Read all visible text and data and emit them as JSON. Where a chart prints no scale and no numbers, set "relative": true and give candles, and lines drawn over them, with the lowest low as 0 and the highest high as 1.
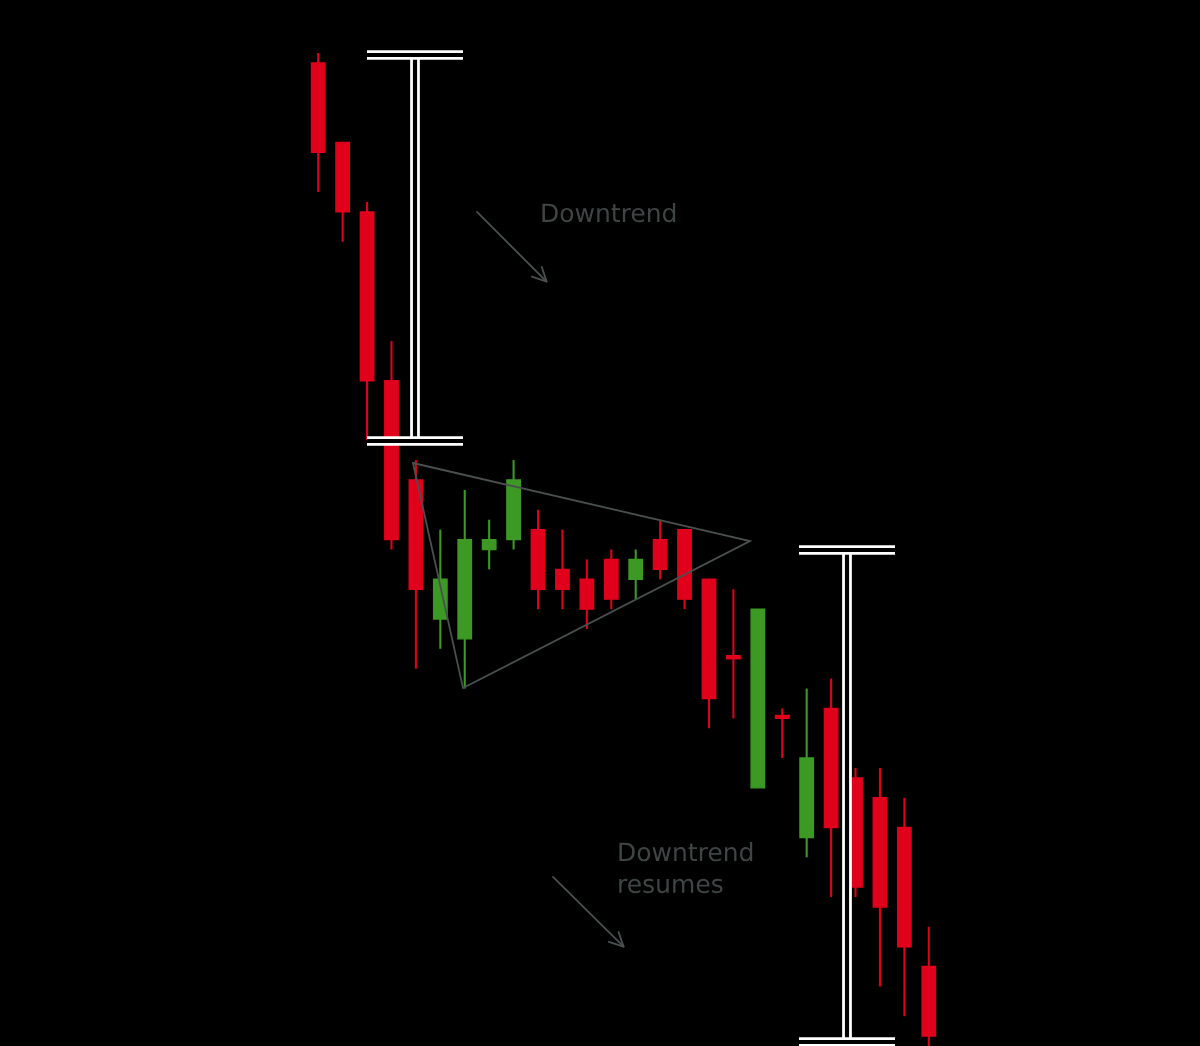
{
  "chart_data": {
    "type": "candlestick",
    "relative": true,
    "categories": [
      null,
      null,
      null,
      null,
      null,
      null,
      null,
      null,
      null,
      null,
      null,
      null,
      null,
      null,
      null,
      null,
      null,
      null,
      null,
      null,
      null,
      null,
      null,
      null,
      null,
      null
    ],
    "ohlc": [
      [
        0.99,
        1.0,
        0.86,
        0.9
      ],
      [
        0.91,
        0.91,
        0.81,
        0.84
      ],
      [
        0.84,
        0.85,
        0.61,
        0.67
      ],
      [
        0.67,
        0.71,
        0.5,
        0.51
      ],
      [
        0.57,
        0.59,
        0.38,
        0.46
      ],
      [
        0.43,
        0.52,
        0.4,
        0.47
      ],
      [
        0.41,
        0.56,
        0.36,
        0.51
      ],
      [
        0.5,
        0.53,
        0.48,
        0.51
      ],
      [
        0.51,
        0.59,
        0.5,
        0.57
      ],
      [
        0.52,
        0.54,
        0.44,
        0.46
      ],
      [
        0.48,
        0.52,
        0.44,
        0.46
      ],
      [
        0.47,
        0.49,
        0.42,
        0.44
      ],
      [
        0.49,
        0.5,
        0.44,
        0.45
      ],
      [
        0.47,
        0.5,
        0.45,
        0.49
      ],
      [
        0.51,
        0.53,
        0.47,
        0.48
      ],
      [
        0.52,
        0.52,
        0.44,
        0.45
      ],
      [
        0.47,
        0.47,
        0.32,
        0.35
      ],
      [
        0.39,
        0.46,
        0.33,
        0.39
      ],
      [
        0.26,
        0.44,
        0.26,
        0.44
      ],
      [
        0.33,
        0.34,
        0.29,
        0.33
      ],
      [
        0.21,
        0.36,
        0.19,
        0.29
      ],
      [
        0.34,
        0.37,
        0.15,
        0.22
      ],
      [
        0.27,
        0.28,
        0.15,
        0.16
      ],
      [
        0.25,
        0.28,
        0.06,
        0.14
      ],
      [
        0.22,
        0.25,
        0.03,
        0.1
      ],
      [
        0.08,
        0.12,
        0.0,
        0.01
      ]
    ],
    "colors": [
      "#e0001b",
      "#e0001b",
      "#e0001b",
      "#e0001b",
      "#e0001b",
      "#3c9a24",
      "#3c9a24",
      "#3c9a24",
      "#3c9a24",
      "#e0001b",
      "#e0001b",
      "#e0001b",
      "#e0001b",
      "#3c9a24",
      "#e0001b",
      "#e0001b",
      "#e0001b",
      "#e0001b",
      "#3c9a24",
      "#e0001b",
      "#3c9a24",
      "#e0001b",
      "#e0001b",
      "#e0001b",
      "#e0001b",
      "#e0001b"
    ],
    "annotations": [
      "Downtrend",
      "Downtrend\nresumes"
    ]
  }
}
